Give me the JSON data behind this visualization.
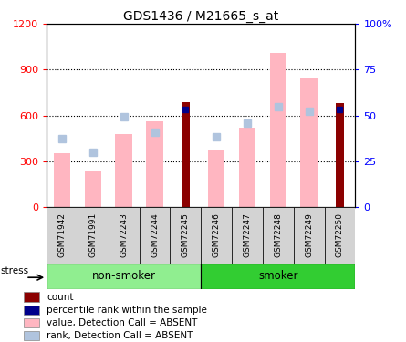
{
  "title": "GDS1436 / M21665_s_at",
  "samples": [
    "GSM71942",
    "GSM71991",
    "GSM72243",
    "GSM72244",
    "GSM72245",
    "GSM72246",
    "GSM72247",
    "GSM72248",
    "GSM72249",
    "GSM72250"
  ],
  "value_absent": [
    350,
    230,
    480,
    560,
    null,
    370,
    520,
    1010,
    840,
    null
  ],
  "rank_absent_left": [
    450,
    360,
    590,
    490,
    null,
    460,
    550,
    660,
    630,
    null
  ],
  "count_present": [
    null,
    null,
    null,
    null,
    690,
    null,
    null,
    null,
    null,
    680
  ],
  "percentile_present_left": [
    null,
    null,
    null,
    null,
    640,
    null,
    null,
    null,
    null,
    640
  ],
  "ylim_left": [
    0,
    1200
  ],
  "ylim_right": [
    0,
    100
  ],
  "yticks_left": [
    0,
    300,
    600,
    900,
    1200
  ],
  "yticks_right": [
    0,
    25,
    50,
    75,
    100
  ],
  "ytick_right_labels": [
    "0",
    "25",
    "50",
    "75",
    "100%"
  ],
  "color_count": "#8B0000",
  "color_percentile": "#00008B",
  "color_value_absent": "#FFB6C1",
  "color_rank_absent": "#B0C4DE",
  "stress_label": "stress",
  "non_smoker_color": "#90EE90",
  "smoker_color": "#32CD32",
  "label_bg_color": "#D3D3D3"
}
